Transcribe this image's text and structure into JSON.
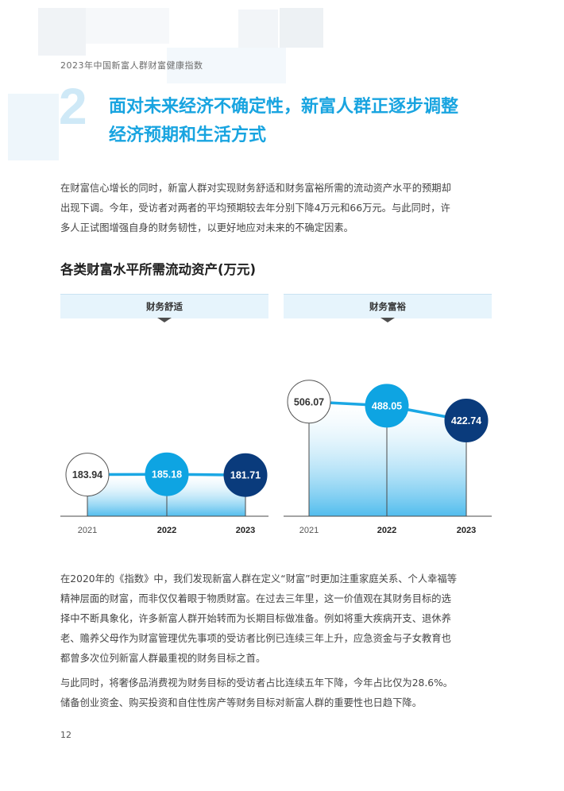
{
  "header": {
    "running_title": "2023年中国新富人群财富健康指数"
  },
  "section": {
    "number": "2",
    "title_line1": "面对未来经济不确定性，新富人群正逐步调整",
    "title_line2": "经济预期和生活方式"
  },
  "paragraphs": {
    "intro": [
      "在财富信心增长的同时，新富人群对实现财务舒适和财务富裕所需的流动资产水平的预期却",
      "出现下调。今年，受访者对两者的平均预期较去年分别下降4万元和66万元。与此同时，许",
      "多人正试图增强自身的财务韧性，以更好地应对未来的不确定因素。"
    ],
    "body1": [
      "在2020年的《指数》中，我们发现新富人群在定义“财富”时更加注重家庭关系、个人幸福等",
      "精神层面的财富，而非仅仅着眼于物质财富。在过去三年里，这一价值观在其财务目标的选",
      "择中不断具象化，许多新富人群开始转而为长期目标做准备。例如将重大疾病开支、退休养",
      "老、赡养父母作为财富管理优先事项的受访者比例已连续三年上升，应急资金与子女教育也",
      "都曾多次位列新富人群最重视的财务目标之首。"
    ],
    "body2": [
      "与此同时，将奢侈品消费视为财务目标的受访者占比连续五年下降，今年占比仅为28.6%。",
      "储备创业资金、购买投资和自住性房产等财务目标对新富人群的重要性也日趋下降。"
    ]
  },
  "chart_data": {
    "type": "line",
    "title": "各类财富水平所需流动资产(万元)",
    "x": [
      "2021",
      "2022",
      "2023"
    ],
    "series": [
      {
        "name": "财务舒适",
        "values": [
          183.94,
          185.18,
          181.71
        ]
      },
      {
        "name": "财务富裕",
        "values": [
          506.07,
          488.05,
          422.74
        ]
      }
    ],
    "value_labels": [
      [
        "183.94",
        "185.18",
        "181.71"
      ],
      [
        "506.07",
        "488.05",
        "422.74"
      ]
    ],
    "point_colors": [
      "#ffffff",
      "#0ea4e2",
      "#0a3b7c"
    ],
    "line_color": "#1aa7e4",
    "bold_years": [
      "2022",
      "2023"
    ],
    "grid": false
  },
  "footer": {
    "page_number": "12"
  }
}
